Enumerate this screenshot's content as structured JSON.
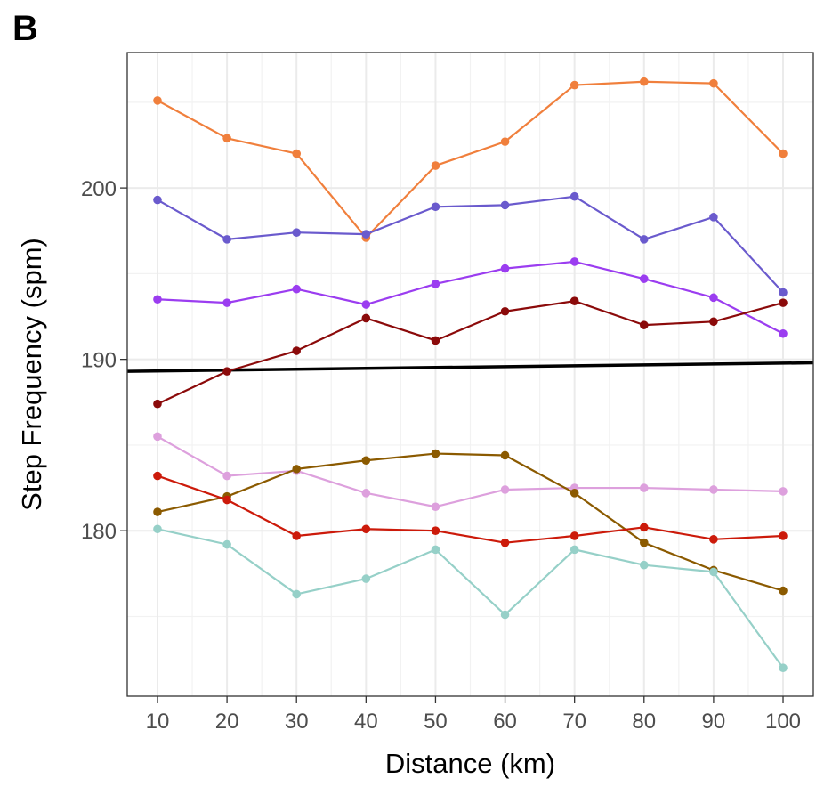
{
  "panel_label": "B",
  "chart_data": {
    "type": "line",
    "title": "",
    "xlabel": "Distance (km)",
    "ylabel": "Step Frequency (spm)",
    "x": [
      10,
      20,
      30,
      40,
      50,
      60,
      70,
      80,
      90,
      100
    ],
    "x_tick_labels": [
      "10",
      "20",
      "30",
      "40",
      "50",
      "60",
      "70",
      "80",
      "90",
      "100"
    ],
    "y_ticks": [
      180,
      190,
      200
    ],
    "y_tick_labels": [
      "180",
      "190",
      "200"
    ],
    "y_minor_gridlines": [
      175,
      185,
      195,
      205
    ],
    "x_minor_gridlines": [
      15,
      25,
      35,
      45,
      55,
      65,
      75,
      85,
      95
    ],
    "xlim": [
      5.65,
      104.35
    ],
    "ylim": [
      170.35,
      207.9
    ],
    "grid": true,
    "legend": "none",
    "series": [
      {
        "name": "orange",
        "color": "#F07F3C",
        "values": [
          205.1,
          202.9,
          202.0,
          197.1,
          201.3,
          202.7,
          206.0,
          206.2,
          206.1,
          202.0
        ]
      },
      {
        "name": "slateblue",
        "color": "#6A5ACD",
        "values": [
          199.3,
          197.0,
          197.4,
          197.3,
          198.9,
          199.0,
          199.5,
          197.0,
          198.3,
          193.9
        ]
      },
      {
        "name": "violet",
        "color": "#9B3DF0",
        "values": [
          193.5,
          193.3,
          194.1,
          193.2,
          194.4,
          195.3,
          195.7,
          194.7,
          193.6,
          191.5
        ]
      },
      {
        "name": "darkred",
        "color": "#8B0A0A",
        "values": [
          187.4,
          189.3,
          190.5,
          192.4,
          191.1,
          192.8,
          193.4,
          192.0,
          192.2,
          193.3
        ]
      },
      {
        "name": "plum",
        "color": "#DDA0DD",
        "values": [
          185.5,
          183.2,
          183.5,
          182.2,
          181.4,
          182.4,
          182.5,
          182.5,
          182.4,
          182.3
        ]
      },
      {
        "name": "brown",
        "color": "#8B5A00",
        "values": [
          181.1,
          182.0,
          183.6,
          184.1,
          184.5,
          184.4,
          182.2,
          179.3,
          177.7,
          176.5
        ]
      },
      {
        "name": "red",
        "color": "#CC1A0A",
        "values": [
          183.2,
          181.8,
          179.7,
          180.1,
          180.0,
          179.3,
          179.7,
          180.2,
          179.5,
          179.7
        ]
      },
      {
        "name": "teal",
        "color": "#96D0C8",
        "values": [
          180.1,
          179.2,
          176.3,
          177.2,
          178.9,
          175.1,
          178.9,
          178.0,
          177.6,
          172.0
        ]
      }
    ],
    "trend_line": {
      "name": "overall-trend",
      "color": "#000000",
      "x": [
        5.65,
        104.35
      ],
      "y": [
        189.3,
        189.8
      ]
    }
  }
}
